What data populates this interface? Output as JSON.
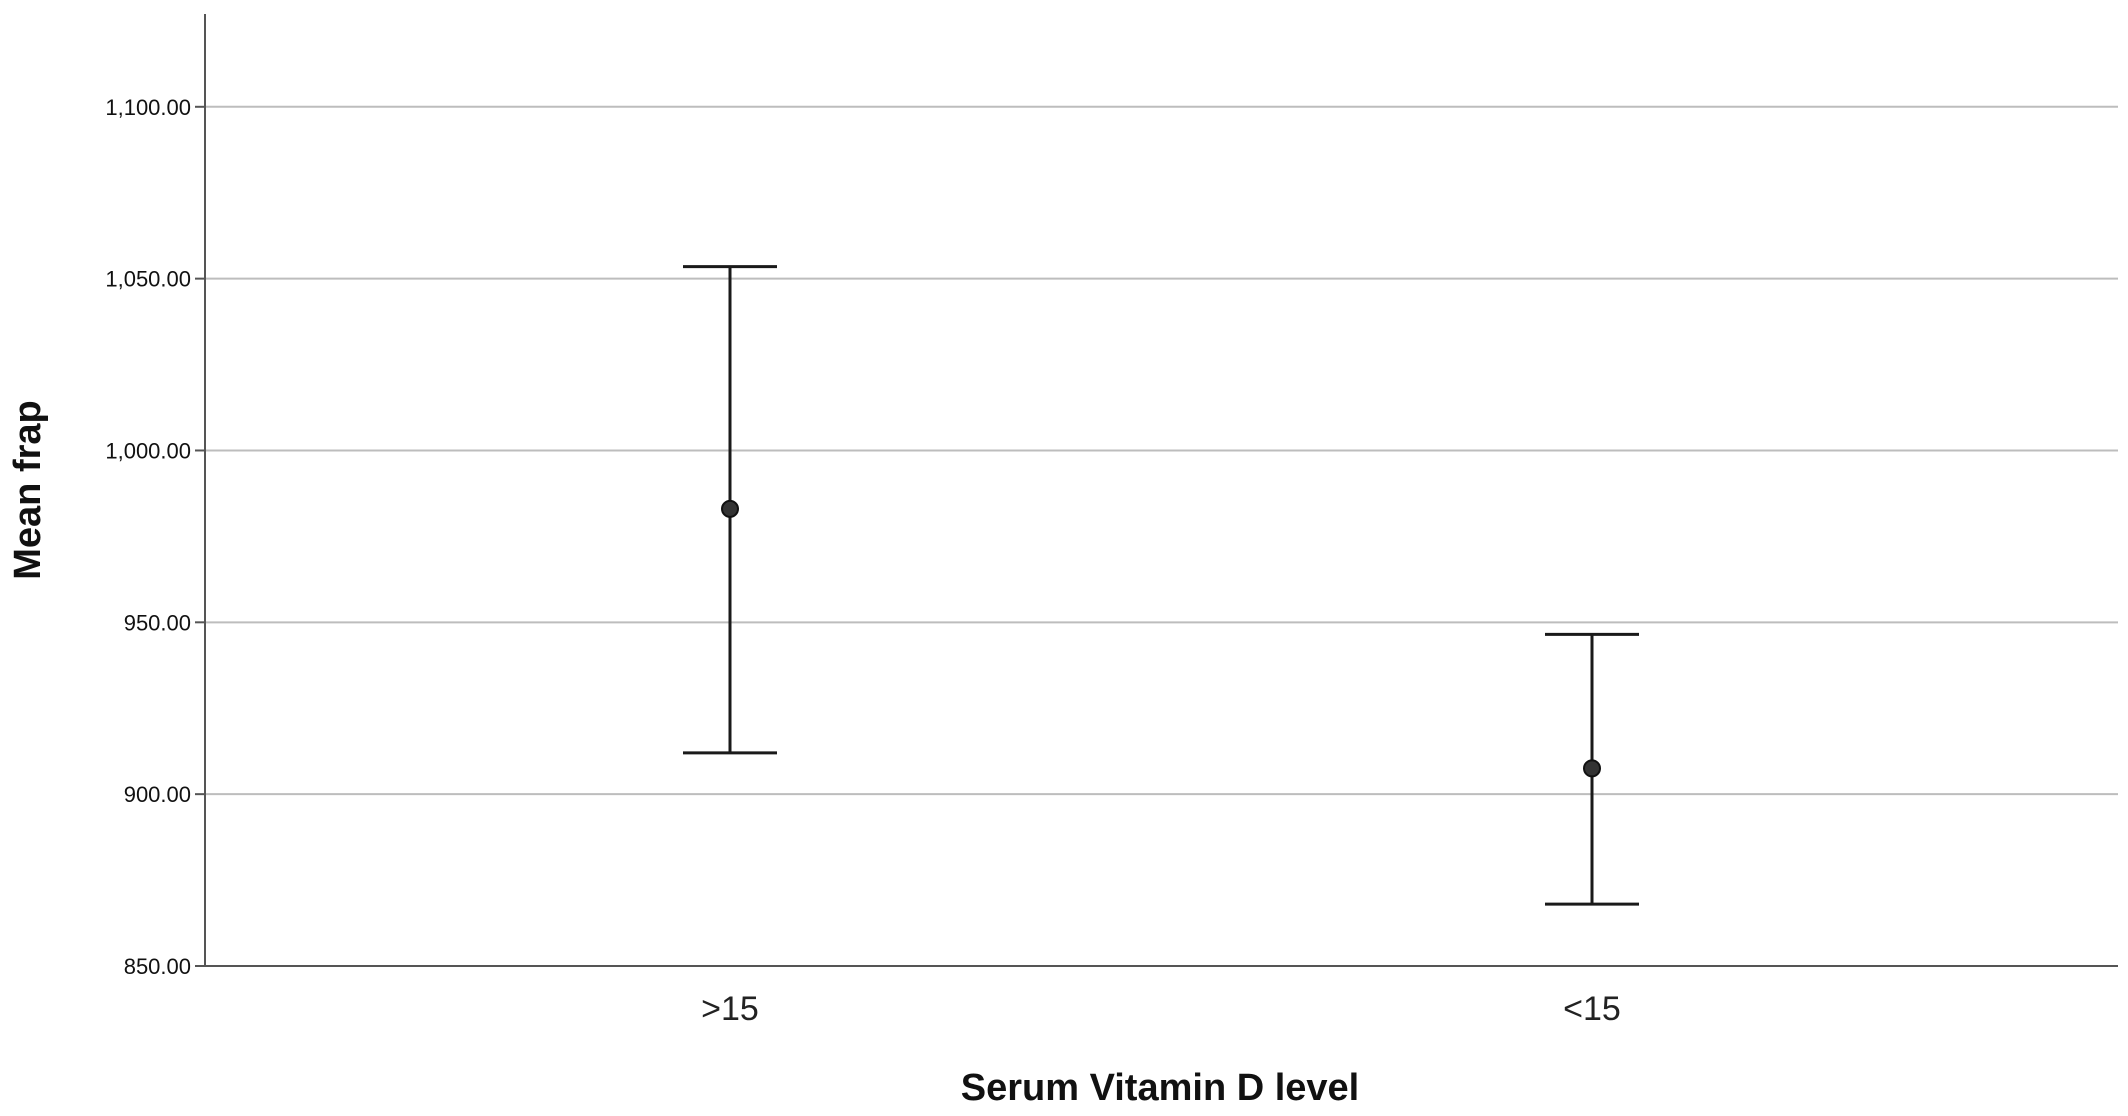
{
  "chart_data": {
    "type": "errorbar",
    "xlabel": "Serum Vitamin D level",
    "ylabel": "Mean frap",
    "categories": [
      ">15",
      "<15"
    ],
    "series": [
      {
        "means": [
          983.0,
          907.5
        ],
        "lower": [
          912.0,
          868.0
        ],
        "upper": [
          1053.5,
          946.5
        ]
      }
    ],
    "ylim": [
      850,
      1127
    ],
    "yticks": [
      850,
      900,
      950,
      1000,
      1050,
      1100
    ],
    "ytick_labels": [
      "850.00",
      "900.00",
      "950.00",
      "1,000.00",
      "1,050.00",
      "1,100.00"
    ],
    "grid": "horizontal"
  }
}
